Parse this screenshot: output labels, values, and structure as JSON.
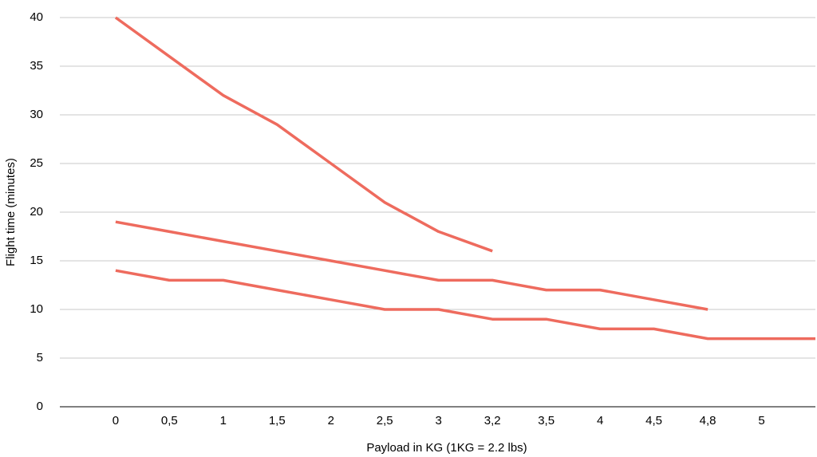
{
  "chart_data": {
    "type": "line",
    "x_label": "Payload in KG (1KG = 2.2 lbs)",
    "y_label": "Flight time (minutes)",
    "categories": [
      null,
      "0",
      "0,5",
      "1",
      "1,5",
      "2",
      "2,5",
      "3",
      "3,2",
      "3,5",
      "4",
      "4,5",
      "4,8",
      "5",
      null
    ],
    "series": [
      {
        "color": "#ee6b5e",
        "values": [
          null,
          40,
          36,
          32,
          29,
          25,
          21,
          18,
          16,
          null,
          null,
          null,
          null,
          null,
          null
        ]
      },
      {
        "color": "#ee6b5e",
        "values": [
          null,
          19,
          18,
          17,
          16,
          15,
          14,
          13,
          13,
          12,
          12,
          11,
          10,
          null,
          null
        ]
      },
      {
        "color": "#ee6b5e",
        "values": [
          null,
          14,
          13,
          13,
          12,
          11,
          10,
          10,
          9,
          9,
          8,
          8,
          7,
          7,
          7
        ]
      }
    ],
    "ylim": [
      0,
      40
    ],
    "yticks": [
      0,
      5,
      10,
      15,
      20,
      25,
      30,
      35,
      40
    ],
    "grid": true
  }
}
